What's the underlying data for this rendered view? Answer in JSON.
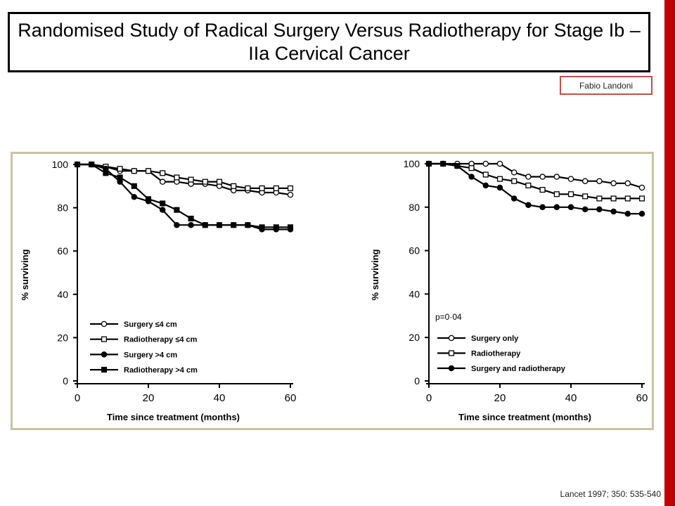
{
  "slide": {
    "title": "Randomised Study of Radical Surgery Versus Radiotherapy for Stage Ib – IIa Cervical Cancer",
    "author": "Fabio Landoni",
    "citation": "Lancet 1997; 350: 535-540",
    "accent_color": "#c00000",
    "frame_color": "#c8c4a4"
  },
  "chart_data": [
    {
      "type": "line",
      "title": "",
      "xlabel": "Time since treatment (months)",
      "ylabel": "% surviving",
      "xlim": [
        0,
        60
      ],
      "ylim": [
        0,
        100
      ],
      "xticks": [
        0,
        20,
        40,
        60
      ],
      "yticks": [
        0,
        20,
        40,
        60,
        80,
        100
      ],
      "legend_position": "bottom-left",
      "series": [
        {
          "name": "Surgery ≤4 cm",
          "marker": "open-circle",
          "x": [
            0,
            4,
            8,
            12,
            16,
            20,
            24,
            28,
            32,
            36,
            40,
            44,
            48,
            52,
            56,
            60
          ],
          "y": [
            100,
            100,
            99,
            97,
            97,
            97,
            92,
            92,
            91,
            91,
            90,
            88,
            88,
            87,
            87,
            86
          ]
        },
        {
          "name": "Radiotherapy ≤4 cm",
          "marker": "open-square",
          "x": [
            0,
            4,
            8,
            12,
            16,
            20,
            24,
            28,
            32,
            36,
            40,
            44,
            48,
            52,
            56,
            60
          ],
          "y": [
            100,
            100,
            99,
            98,
            97,
            97,
            96,
            94,
            93,
            92,
            92,
            90,
            89,
            89,
            89,
            89
          ]
        },
        {
          "name": "Surgery >4 cm",
          "marker": "filled-circle",
          "x": [
            0,
            4,
            8,
            12,
            16,
            20,
            24,
            28,
            32,
            36,
            40,
            44,
            48,
            52,
            56,
            60
          ],
          "y": [
            100,
            100,
            98,
            92,
            85,
            83,
            79,
            72,
            72,
            72,
            72,
            72,
            72,
            70,
            70,
            70
          ]
        },
        {
          "name": "Radiotherapy >4 cm",
          "marker": "filled-square",
          "x": [
            0,
            4,
            8,
            12,
            16,
            20,
            24,
            28,
            32,
            36,
            40,
            44,
            48,
            52,
            56,
            60
          ],
          "y": [
            100,
            100,
            96,
            94,
            90,
            84,
            82,
            79,
            75,
            72,
            72,
            72,
            72,
            71,
            71,
            71
          ]
        }
      ]
    },
    {
      "type": "line",
      "title": "",
      "xlabel": "Time since treatment (months)",
      "ylabel": "% surviving",
      "xlim": [
        0,
        60
      ],
      "ylim": [
        0,
        100
      ],
      "xticks": [
        0,
        20,
        40,
        60
      ],
      "yticks": [
        0,
        20,
        40,
        60,
        80,
        100
      ],
      "legend_position": "bottom-left",
      "annotation": "p=0·04",
      "series": [
        {
          "name": "Surgery only",
          "marker": "open-circle",
          "x": [
            0,
            4,
            8,
            12,
            16,
            20,
            24,
            28,
            32,
            36,
            40,
            44,
            48,
            52,
            56,
            60
          ],
          "y": [
            100,
            100,
            100,
            100,
            100,
            100,
            96,
            94,
            94,
            94,
            93,
            92,
            92,
            91,
            91,
            89
          ]
        },
        {
          "name": "Radiotherapy",
          "marker": "open-square",
          "x": [
            0,
            4,
            8,
            12,
            16,
            20,
            24,
            28,
            32,
            36,
            40,
            44,
            48,
            52,
            56,
            60
          ],
          "y": [
            100,
            100,
            99,
            98,
            95,
            93,
            92,
            90,
            88,
            86,
            86,
            85,
            84,
            84,
            84,
            84
          ]
        },
        {
          "name": "Surgery and radiotherapy",
          "marker": "filled-circle",
          "x": [
            0,
            4,
            8,
            12,
            16,
            20,
            24,
            28,
            32,
            36,
            40,
            44,
            48,
            52,
            56,
            60
          ],
          "y": [
            100,
            100,
            99,
            94,
            90,
            89,
            84,
            81,
            80,
            80,
            80,
            79,
            79,
            78,
            77,
            77
          ]
        }
      ]
    }
  ]
}
